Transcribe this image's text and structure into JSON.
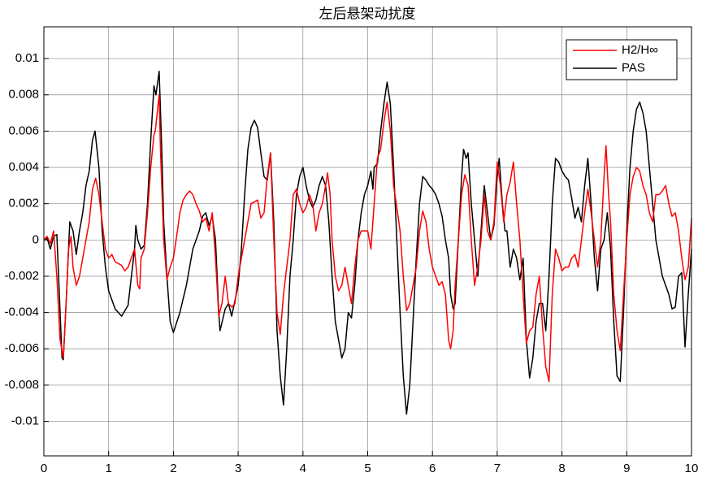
{
  "chart_data": {
    "type": "line",
    "title": "左后悬架动扰度",
    "xlim": [
      0,
      10
    ],
    "xticks": [
      0,
      1,
      2,
      3,
      4,
      5,
      6,
      7,
      8,
      9,
      10
    ],
    "ylim": [
      -0.0119,
      0.01175
    ],
    "yticks": [
      -0.01,
      -0.008,
      -0.006,
      -0.004,
      -0.002,
      0,
      0.002,
      0.004,
      0.006,
      0.008,
      0.01
    ],
    "grid": true,
    "legend": "top-right",
    "series": [
      {
        "name": "H2/H∞",
        "color": "#ff0000",
        "x": [
          0,
          0.05,
          0.1,
          0.15,
          0.2,
          0.25,
          0.3,
          0.35,
          0.38,
          0.42,
          0.45,
          0.5,
          0.55,
          0.6,
          0.65,
          0.7,
          0.75,
          0.8,
          0.85,
          0.9,
          0.95,
          1,
          1.05,
          1.1,
          1.2,
          1.25,
          1.3,
          1.35,
          1.4,
          1.45,
          1.48,
          1.5,
          1.55,
          1.6,
          1.65,
          1.7,
          1.72,
          1.75,
          1.78,
          1.8,
          1.85,
          1.9,
          1.95,
          2,
          2.05,
          2.1,
          2.15,
          2.2,
          2.25,
          2.3,
          2.35,
          2.4,
          2.45,
          2.5,
          2.55,
          2.6,
          2.65,
          2.7,
          2.75,
          2.8,
          2.85,
          2.9,
          2.95,
          3,
          3.05,
          3.1,
          3.15,
          3.2,
          3.3,
          3.35,
          3.4,
          3.45,
          3.5,
          3.55,
          3.6,
          3.65,
          3.7,
          3.75,
          3.8,
          3.85,
          3.9,
          3.95,
          4,
          4.05,
          4.1,
          4.15,
          4.2,
          4.25,
          4.3,
          4.35,
          4.38,
          4.42,
          4.45,
          4.5,
          4.55,
          4.6,
          4.65,
          4.7,
          4.75,
          4.8,
          4.85,
          4.9,
          4.95,
          5,
          5.05,
          5.1,
          5.15,
          5.2,
          5.25,
          5.3,
          5.35,
          5.4,
          5.45,
          5.5,
          5.55,
          5.6,
          5.65,
          5.7,
          5.75,
          5.8,
          5.85,
          5.9,
          5.95,
          6,
          6.05,
          6.1,
          6.15,
          6.2,
          6.25,
          6.28,
          6.32,
          6.35,
          6.4,
          6.45,
          6.5,
          6.55,
          6.6,
          6.65,
          6.7,
          6.75,
          6.8,
          6.85,
          6.9,
          6.95,
          7,
          7.05,
          7.1,
          7.15,
          7.2,
          7.25,
          7.3,
          7.35,
          7.4,
          7.45,
          7.5,
          7.55,
          7.6,
          7.65,
          7.7,
          7.75,
          7.8,
          7.85,
          7.9,
          7.95,
          8,
          8.05,
          8.1,
          8.15,
          8.2,
          8.25,
          8.3,
          8.35,
          8.4,
          8.45,
          8.5,
          8.55,
          8.6,
          8.65,
          8.68,
          8.72,
          8.75,
          8.8,
          8.85,
          8.9,
          8.95,
          9,
          9.05,
          9.1,
          9.15,
          9.2,
          9.25,
          9.3,
          9.35,
          9.4,
          9.45,
          9.5,
          9.55,
          9.6,
          9.65,
          9.7,
          9.75,
          9.8,
          9.85,
          9.9,
          9.95,
          10
        ],
        "values": [
          0,
          0.0002,
          -0.0002,
          0.0005,
          -0.002,
          -0.0055,
          -0.0065,
          -0.003,
          -0.0005,
          0.0002,
          -0.0015,
          -0.0025,
          -0.002,
          -0.001,
          0,
          0.001,
          0.0028,
          0.0034,
          0.0025,
          0.001,
          -0.0005,
          -0.001,
          -0.0008,
          -0.0012,
          -0.0014,
          -0.0017,
          -0.0015,
          -0.001,
          -0.0005,
          -0.0025,
          -0.0027,
          -0.001,
          -0.0005,
          0.0015,
          0.004,
          0.0058,
          0.006,
          0.007,
          0.008,
          0.005,
          0,
          -0.0022,
          -0.0015,
          -0.001,
          0.0002,
          0.0015,
          0.0022,
          0.0025,
          0.0027,
          0.0025,
          0.002,
          0.0016,
          0.001,
          0.0012,
          0.0005,
          0.0015,
          -0.001,
          -0.0042,
          -0.0035,
          -0.002,
          -0.0035,
          -0.0037,
          -0.0035,
          -0.002,
          -0.001,
          0,
          0.001,
          0.002,
          0.0022,
          0.0012,
          0.0015,
          0.0035,
          0.0048,
          0,
          -0.004,
          -0.0052,
          -0.003,
          -0.0015,
          0,
          0.0025,
          0.0028,
          0.002,
          0.0015,
          0.0018,
          0.0025,
          0.002,
          0.0005,
          0.0015,
          0.002,
          0.003,
          0.0037,
          0.0025,
          0,
          -0.002,
          -0.0028,
          -0.0025,
          -0.0015,
          -0.0025,
          -0.0035,
          -0.0015,
          0,
          0.0005,
          0.0005,
          0.0005,
          -0.0005,
          0.002,
          0.0045,
          0.005,
          0.0065,
          0.0076,
          0.006,
          0.003,
          0.0018,
          0.0005,
          -0.002,
          -0.0039,
          -0.0035,
          -0.0025,
          -0.0015,
          0.0005,
          0.0016,
          0.001,
          -0.0005,
          -0.0015,
          -0.002,
          -0.0025,
          -0.0023,
          -0.003,
          -0.0055,
          -0.006,
          -0.005,
          -0.0025,
          0,
          0.0025,
          0.0036,
          0.003,
          0,
          -0.0025,
          -0.0015,
          0,
          0.0025,
          0.0005,
          0,
          0.001,
          0.0043,
          0.003,
          0.001,
          0.0025,
          0.0032,
          0.0043,
          0.002,
          0,
          -0.003,
          -0.0057,
          -0.005,
          -0.0048,
          -0.003,
          -0.002,
          -0.0048,
          -0.007,
          -0.0078,
          -0.003,
          -0.0005,
          -0.001,
          -0.0017,
          -0.0015,
          -0.0015,
          -0.001,
          -0.0008,
          -0.0015,
          0,
          0.0015,
          0.0028,
          0.0015,
          0,
          -0.0015,
          0,
          0.0035,
          0.0052,
          0.0025,
          0.001,
          -0.003,
          -0.005,
          -0.0061,
          -0.003,
          0,
          0.0025,
          0.0035,
          0.004,
          0.0038,
          0.003,
          0.0025,
          0.0015,
          0.001,
          0.0025,
          0.0025,
          0.0027,
          0.003,
          0.002,
          0.0013,
          0.0015,
          0.0005,
          -0.001,
          -0.0022,
          -0.0015,
          0.0012
        ]
      },
      {
        "name": "PAS",
        "color": "#000000",
        "x": [
          0,
          0.05,
          0.1,
          0.15,
          0.2,
          0.28,
          0.3,
          0.35,
          0.4,
          0.45,
          0.5,
          0.55,
          0.6,
          0.65,
          0.7,
          0.75,
          0.79,
          0.85,
          0.9,
          0.95,
          1,
          1.1,
          1.2,
          1.3,
          1.4,
          1.42,
          1.45,
          1.5,
          1.55,
          1.6,
          1.65,
          1.7,
          1.73,
          1.78,
          1.82,
          1.85,
          1.9,
          1.95,
          2,
          2.1,
          2.2,
          2.3,
          2.4,
          2.45,
          2.5,
          2.55,
          2.6,
          2.65,
          2.7,
          2.72,
          2.8,
          2.85,
          2.9,
          3,
          3.05,
          3.1,
          3.15,
          3.2,
          3.25,
          3.3,
          3.35,
          3.4,
          3.45,
          3.5,
          3.55,
          3.6,
          3.65,
          3.7,
          3.75,
          3.8,
          3.85,
          3.9,
          3.95,
          4,
          4.05,
          4.1,
          4.15,
          4.2,
          4.25,
          4.3,
          4.35,
          4.4,
          4.45,
          4.5,
          4.6,
          4.65,
          4.7,
          4.75,
          4.8,
          4.85,
          4.9,
          4.95,
          5,
          5.05,
          5.08,
          5.1,
          5.15,
          5.2,
          5.25,
          5.3,
          5.35,
          5.4,
          5.45,
          5.5,
          5.55,
          5.6,
          5.65,
          5.7,
          5.75,
          5.8,
          5.85,
          5.9,
          5.95,
          6,
          6.05,
          6.1,
          6.15,
          6.2,
          6.25,
          6.28,
          6.32,
          6.35,
          6.4,
          6.45,
          6.48,
          6.52,
          6.55,
          6.6,
          6.65,
          6.7,
          6.75,
          6.8,
          6.85,
          6.9,
          6.95,
          7,
          7.03,
          7.08,
          7.12,
          7.15,
          7.2,
          7.25,
          7.3,
          7.35,
          7.4,
          7.45,
          7.5,
          7.55,
          7.6,
          7.65,
          7.7,
          7.75,
          7.8,
          7.85,
          7.9,
          7.95,
          8,
          8.05,
          8.1,
          8.15,
          8.2,
          8.25,
          8.3,
          8.35,
          8.4,
          8.45,
          8.5,
          8.55,
          8.6,
          8.65,
          8.7,
          8.75,
          8.8,
          8.85,
          8.9,
          8.95,
          9,
          9.05,
          9.1,
          9.15,
          9.2,
          9.25,
          9.3,
          9.35,
          9.4,
          9.45,
          9.5,
          9.55,
          9.6,
          9.65,
          9.7,
          9.75,
          9.8,
          9.85,
          9.9,
          9.95,
          10
        ],
        "values": [
          0,
          0.0001,
          -0.0005,
          0.0002,
          0.0003,
          -0.0065,
          -0.0066,
          -0.003,
          0.001,
          0.0005,
          -0.0008,
          0.0005,
          0.0015,
          0.003,
          0.0038,
          0.0055,
          0.006,
          0.004,
          0.0005,
          -0.0015,
          -0.0028,
          -0.0038,
          -0.0042,
          -0.0036,
          -0.0005,
          0.0008,
          0,
          -0.0005,
          -0.0003,
          0.002,
          0.0055,
          0.0085,
          0.008,
          0.0093,
          0.005,
          0.001,
          -0.002,
          -0.0045,
          -0.0051,
          -0.004,
          -0.0025,
          -0.0005,
          0.0005,
          0.0013,
          0.0015,
          0.0008,
          0.0013,
          0,
          -0.004,
          -0.005,
          -0.0038,
          -0.0035,
          -0.0042,
          -0.0025,
          -0.0005,
          0.0025,
          0.005,
          0.0062,
          0.0066,
          0.0062,
          0.0048,
          0.0035,
          0.0033,
          0.0048,
          0.001,
          -0.005,
          -0.0075,
          -0.0091,
          -0.006,
          -0.002,
          0,
          0.0025,
          0.0035,
          0.004,
          0.003,
          0.0022,
          0.0018,
          0.0022,
          0.003,
          0.0035,
          0.003,
          0.001,
          -0.002,
          -0.0045,
          -0.0065,
          -0.006,
          -0.004,
          -0.0043,
          -0.0025,
          0,
          0.0015,
          0.0025,
          0.003,
          0.0038,
          0.0028,
          0.004,
          0.0042,
          0.006,
          0.0075,
          0.0087,
          0.0075,
          0.004,
          0,
          -0.004,
          -0.0075,
          -0.0096,
          -0.008,
          -0.0045,
          -0.001,
          0.002,
          0.0035,
          0.0033,
          0.003,
          0.0028,
          0.0025,
          0.002,
          0.0013,
          0,
          -0.001,
          -0.003,
          -0.0038,
          -0.0035,
          0,
          0.0035,
          0.005,
          0.0045,
          0.0048,
          0.002,
          0,
          -0.002,
          0.0005,
          0.003,
          0.0015,
          0,
          0.0008,
          0.0035,
          0.0045,
          0.002,
          0.0005,
          0.0005,
          -0.0015,
          -0.0005,
          -0.001,
          -0.0022,
          -0.001,
          -0.0055,
          -0.0076,
          -0.0065,
          -0.0045,
          -0.0035,
          -0.0035,
          -0.005,
          -0.002,
          0.002,
          0.0045,
          0.0043,
          0.0038,
          0.0035,
          0.0033,
          0.0023,
          0.0012,
          0.0018,
          0.001,
          0.003,
          0.0045,
          0.002,
          -0.001,
          -0.0028,
          -0.0005,
          0,
          0.0015,
          -0.0005,
          -0.0045,
          -0.0075,
          -0.0078,
          -0.004,
          0.0005,
          0.004,
          0.006,
          0.0072,
          0.0076,
          0.007,
          0.006,
          0.004,
          0.002,
          0,
          -0.001,
          -0.002,
          -0.0025,
          -0.003,
          -0.0038,
          -0.0037,
          -0.002,
          -0.0018,
          -0.0059,
          -0.003,
          -0.0005
        ]
      }
    ]
  }
}
